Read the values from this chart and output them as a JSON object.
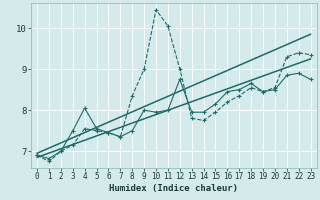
{
  "xlabel": "Humidex (Indice chaleur)",
  "xlim_min": -0.5,
  "xlim_max": 23.5,
  "ylim_min": 6.6,
  "ylim_max": 10.6,
  "xticks": [
    0,
    1,
    2,
    3,
    4,
    5,
    6,
    7,
    8,
    9,
    10,
    11,
    12,
    13,
    14,
    15,
    16,
    17,
    18,
    19,
    20,
    21,
    22,
    23
  ],
  "yticks": [
    7,
    8,
    9,
    10
  ],
  "background_color": "#d5eaea",
  "grid_color": "#ffffff",
  "line_color": "#1a6b6b",
  "series": [
    {
      "x": [
        0,
        1,
        2,
        3,
        4,
        5,
        6,
        7,
        8,
        9,
        10,
        11,
        12,
        13,
        14,
        15,
        16,
        17,
        18,
        19,
        20,
        21,
        22,
        23
      ],
      "y": [
        6.9,
        6.75,
        7.0,
        7.15,
        7.55,
        7.5,
        7.45,
        7.35,
        8.35,
        9.0,
        10.45,
        10.05,
        9.0,
        7.8,
        7.75,
        7.95,
        8.2,
        8.35,
        8.55,
        8.45,
        8.55,
        9.3,
        9.4,
        9.35
      ],
      "style": "--",
      "marker": "+",
      "lw": 0.8
    },
    {
      "x": [
        0,
        23
      ],
      "y": [
        6.95,
        9.85
      ],
      "style": "-",
      "marker": null,
      "lw": 1.1
    },
    {
      "x": [
        0,
        23
      ],
      "y": [
        6.85,
        9.25
      ],
      "style": "-",
      "marker": null,
      "lw": 1.1
    },
    {
      "x": [
        0,
        1,
        2,
        3,
        4,
        5,
        6,
        7,
        8,
        9,
        10,
        11,
        12,
        13,
        14,
        15,
        16,
        17,
        18,
        19,
        20,
        21,
        22,
        23
      ],
      "y": [
        6.9,
        6.82,
        7.0,
        7.5,
        8.05,
        7.55,
        7.45,
        7.35,
        7.5,
        8.0,
        7.95,
        8.0,
        8.75,
        7.95,
        7.95,
        8.15,
        8.45,
        8.5,
        8.65,
        8.45,
        8.5,
        8.85,
        8.9,
        8.75
      ],
      "style": "-",
      "marker": "+",
      "lw": 0.8
    }
  ]
}
